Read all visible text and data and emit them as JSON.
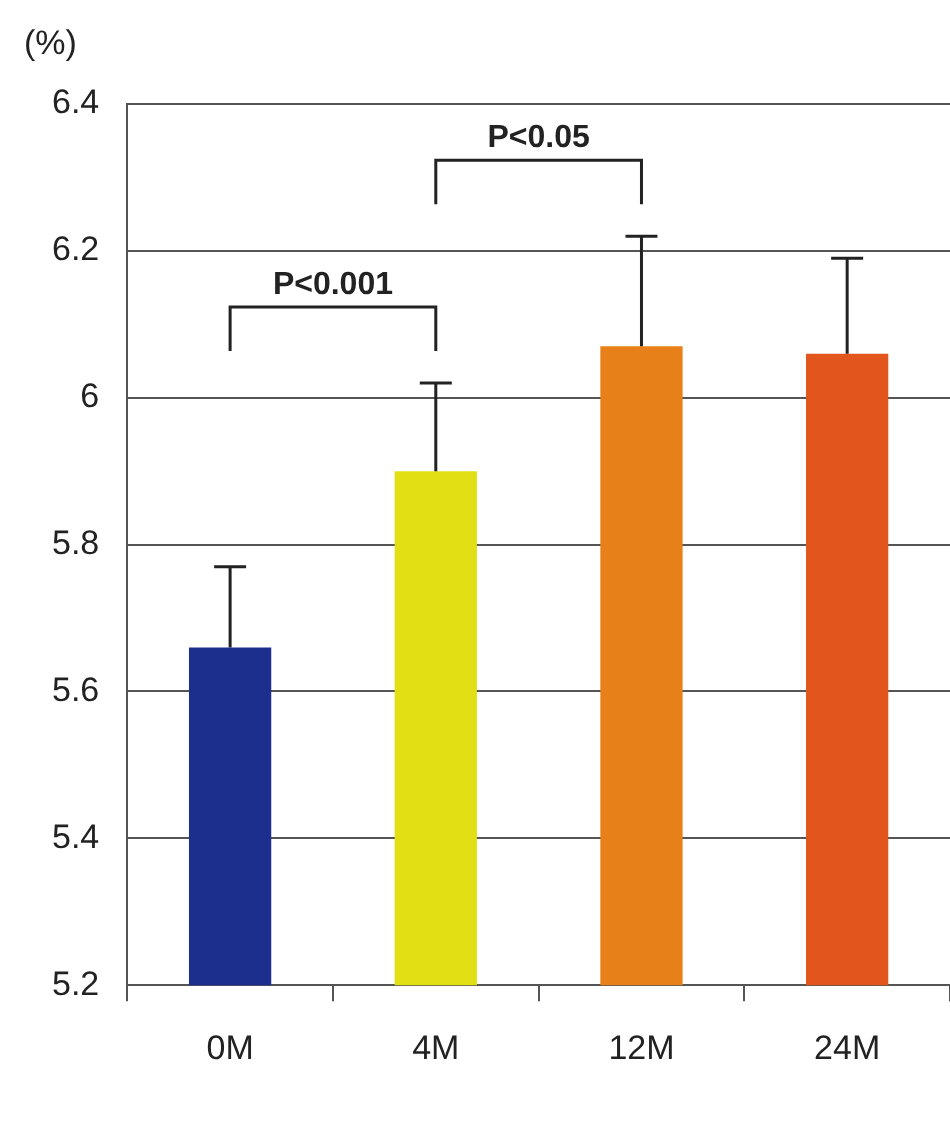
{
  "chart_data": {
    "type": "bar",
    "ylabel": "(%)",
    "categories": [
      "0M",
      "4M",
      "12M",
      "24M"
    ],
    "values": [
      5.66,
      5.9,
      6.07,
      6.06
    ],
    "colors": [
      "#1c2f8c",
      "#e2e014",
      "#e8801a",
      "#e2561e"
    ],
    "errors": [
      [
        5.66,
        5.77
      ],
      [
        5.9,
        6.02
      ],
      [
        6.07,
        6.22
      ],
      [
        6.06,
        6.19
      ]
    ],
    "ylim": [
      5.2,
      6.4
    ],
    "yticks": [
      5.2,
      5.4,
      5.6,
      5.8,
      {
        "value": 6,
        "label": "6"
      },
      6.2,
      6.4
    ],
    "grid": "y",
    "annotations": [
      "P<0.001",
      "P<0.05"
    ]
  }
}
